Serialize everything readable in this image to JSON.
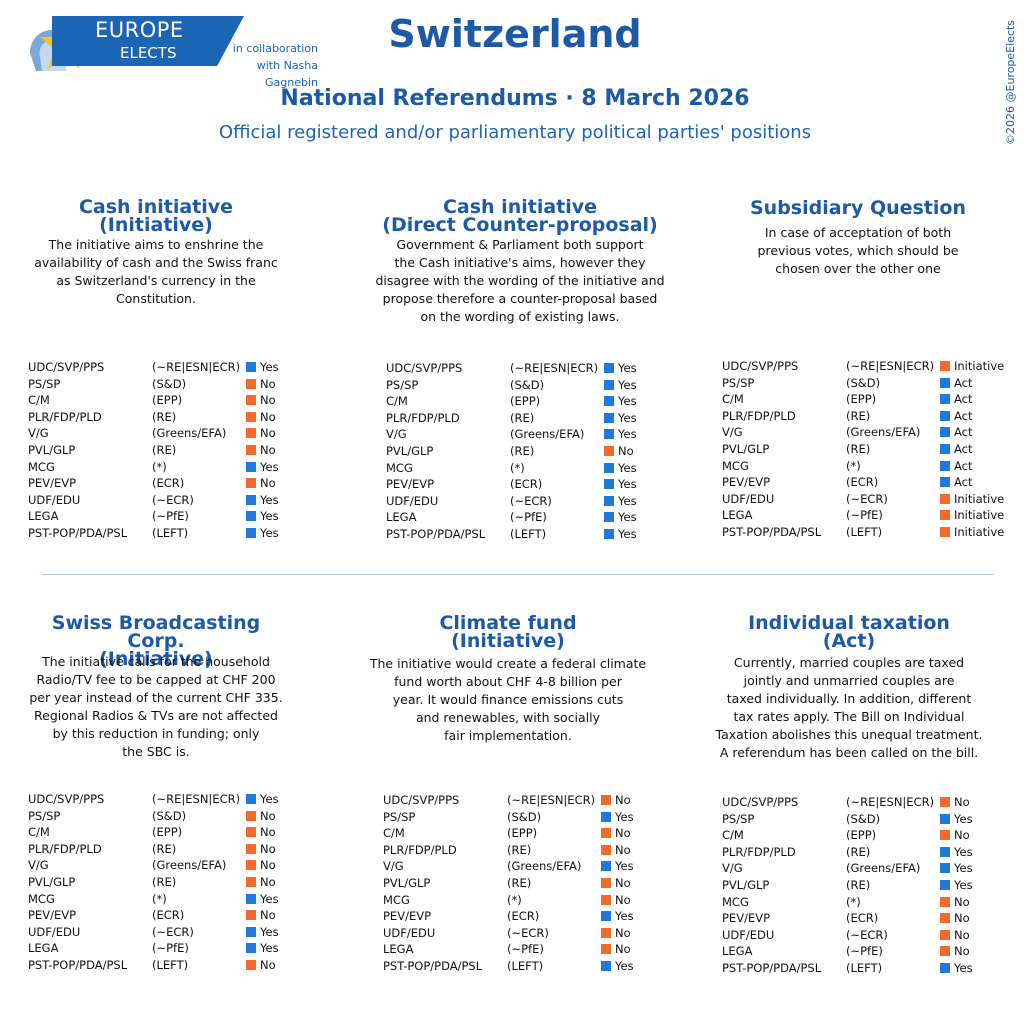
{
  "header": {
    "logo_line1": "EUROPE",
    "logo_line2": "ELECTS",
    "collab_line1": "in collaboration",
    "collab_line2": "with Nasha Gagnebin",
    "title": "Switzerland",
    "subtitle": "National Referendums · 8 March 2026",
    "subtitle2": "Official registered and/or parliamentary political parties' positions",
    "copyright": "©2026 @EuropeElects"
  },
  "colors": {
    "yes": "#1f79d8",
    "no": "#f46a2b",
    "title": "#1c5aa6"
  },
  "sections": [
    {
      "title1": "Cash initiative",
      "title2": "(Initiative)",
      "desc": [
        "The initiative aims to enshrine the",
        "availability of cash and the Swiss franc",
        "as Switzerland's currency in the",
        "Constitution."
      ],
      "rows": [
        {
          "party": "UDC/SVP/PPS",
          "group": "(~RE|ESN|ECR)",
          "pos": "Yes",
          "color": "blue"
        },
        {
          "party": "PS/SP",
          "group": "(S&D)",
          "pos": "No",
          "color": "orange"
        },
        {
          "party": "C/M",
          "group": "(EPP)",
          "pos": "No",
          "color": "orange"
        },
        {
          "party": "PLR/FDP/PLD",
          "group": "(RE)",
          "pos": "No",
          "color": "orange"
        },
        {
          "party": "V/G",
          "group": "(Greens/EFA)",
          "pos": "No",
          "color": "orange"
        },
        {
          "party": "PVL/GLP",
          "group": "(RE)",
          "pos": "No",
          "color": "orange"
        },
        {
          "party": "MCG",
          "group": "(*)",
          "pos": "Yes",
          "color": "blue"
        },
        {
          "party": "PEV/EVP",
          "group": "(ECR)",
          "pos": "No",
          "color": "orange"
        },
        {
          "party": "UDF/EDU",
          "group": "(~ECR)",
          "pos": "Yes",
          "color": "blue"
        },
        {
          "party": "LEGA",
          "group": "(~PfE)",
          "pos": "Yes",
          "color": "blue"
        },
        {
          "party": "PST-POP/PDA/PSL",
          "group": "(LEFT)",
          "pos": "Yes",
          "color": "blue"
        }
      ]
    },
    {
      "title1": "Cash initiative",
      "title2": "(Direct Counter-proposal)",
      "desc": [
        "Government & Parliament both support",
        "the Cash initiative's aims, however they",
        "disagree with the wording of the initiative and",
        "propose therefore a counter-proposal based",
        "on the wording of existing laws."
      ],
      "rows": [
        {
          "party": "UDC/SVP/PPS",
          "group": "(~RE|ESN|ECR)",
          "pos": "Yes",
          "color": "blue"
        },
        {
          "party": "PS/SP",
          "group": "(S&D)",
          "pos": "Yes",
          "color": "blue"
        },
        {
          "party": "C/M",
          "group": "(EPP)",
          "pos": "Yes",
          "color": "blue"
        },
        {
          "party": "PLR/FDP/PLD",
          "group": "(RE)",
          "pos": "Yes",
          "color": "blue"
        },
        {
          "party": "V/G",
          "group": "(Greens/EFA)",
          "pos": "Yes",
          "color": "blue"
        },
        {
          "party": "PVL/GLP",
          "group": "(RE)",
          "pos": "No",
          "color": "orange"
        },
        {
          "party": "MCG",
          "group": "(*)",
          "pos": "Yes",
          "color": "blue"
        },
        {
          "party": "PEV/EVP",
          "group": "(ECR)",
          "pos": "Yes",
          "color": "blue"
        },
        {
          "party": "UDF/EDU",
          "group": "(~ECR)",
          "pos": "Yes",
          "color": "blue"
        },
        {
          "party": "LEGA",
          "group": "(~PfE)",
          "pos": "Yes",
          "color": "blue"
        },
        {
          "party": "PST-POP/PDA/PSL",
          "group": "(LEFT)",
          "pos": "Yes",
          "color": "blue"
        }
      ]
    },
    {
      "title1": "Subsidiary Question",
      "title2": "",
      "desc": [
        "In case of acceptation of both",
        "previous votes, which should be",
        "chosen over the other one"
      ],
      "rows": [
        {
          "party": "UDC/SVP/PPS",
          "group": "(~RE|ESN|ECR)",
          "pos": "Initiative",
          "color": "orange"
        },
        {
          "party": "PS/SP",
          "group": "(S&D)",
          "pos": "Act",
          "color": "blue"
        },
        {
          "party": "C/M",
          "group": "(EPP)",
          "pos": "Act",
          "color": "blue"
        },
        {
          "party": "PLR/FDP/PLD",
          "group": "(RE)",
          "pos": "Act",
          "color": "blue"
        },
        {
          "party": "V/G",
          "group": "(Greens/EFA)",
          "pos": "Act",
          "color": "blue"
        },
        {
          "party": "PVL/GLP",
          "group": "(RE)",
          "pos": "Act",
          "color": "blue"
        },
        {
          "party": "MCG",
          "group": "(*)",
          "pos": "Act",
          "color": "blue"
        },
        {
          "party": "PEV/EVP",
          "group": "(ECR)",
          "pos": "Act",
          "color": "blue"
        },
        {
          "party": "UDF/EDU",
          "group": "(~ECR)",
          "pos": "Initiative",
          "color": "orange"
        },
        {
          "party": "LEGA",
          "group": "(~PfE)",
          "pos": "Initiative",
          "color": "orange"
        },
        {
          "party": "PST-POP/PDA/PSL",
          "group": "(LEFT)",
          "pos": "Initiative",
          "color": "orange"
        }
      ]
    },
    {
      "title1": "Swiss Broadcasting Corp.",
      "title2": "(Initiative)",
      "desc": [
        "The initiative calls for the household",
        "Radio/TV fee to be capped at CHF 200",
        "per year instead of the current CHF 335.",
        "Regional Radios & TVs are not affected",
        "by this reduction in funding; only",
        "the SBC is."
      ],
      "rows": [
        {
          "party": "UDC/SVP/PPS",
          "group": "(~RE|ESN|ECR)",
          "pos": "Yes",
          "color": "blue"
        },
        {
          "party": "PS/SP",
          "group": "(S&D)",
          "pos": "No",
          "color": "orange"
        },
        {
          "party": "C/M",
          "group": "(EPP)",
          "pos": "No",
          "color": "orange"
        },
        {
          "party": "PLR/FDP/PLD",
          "group": "(RE)",
          "pos": "No",
          "color": "orange"
        },
        {
          "party": "V/G",
          "group": "(Greens/EFA)",
          "pos": "No",
          "color": "orange"
        },
        {
          "party": "PVL/GLP",
          "group": "(RE)",
          "pos": "No",
          "color": "orange"
        },
        {
          "party": "MCG",
          "group": "(*)",
          "pos": "Yes",
          "color": "blue"
        },
        {
          "party": "PEV/EVP",
          "group": "(ECR)",
          "pos": "No",
          "color": "orange"
        },
        {
          "party": "UDF/EDU",
          "group": "(~ECR)",
          "pos": "Yes",
          "color": "blue"
        },
        {
          "party": "LEGA",
          "group": "(~PfE)",
          "pos": "Yes",
          "color": "blue"
        },
        {
          "party": "PST-POP/PDA/PSL",
          "group": "(LEFT)",
          "pos": "No",
          "color": "orange"
        }
      ]
    },
    {
      "title1": "Climate fund",
      "title2": "(Initiative)",
      "desc": [
        "The initiative would create a federal climate",
        "fund worth about CHF 4-8 billion per",
        "year. It would finance emissions cuts",
        "and renewables, with socially",
        "fair implementation."
      ],
      "rows": [
        {
          "party": "UDC/SVP/PPS",
          "group": "(~RE|ESN|ECR)",
          "pos": "No",
          "color": "orange"
        },
        {
          "party": "PS/SP",
          "group": "(S&D)",
          "pos": "Yes",
          "color": "blue"
        },
        {
          "party": "C/M",
          "group": "(EPP)",
          "pos": "No",
          "color": "orange"
        },
        {
          "party": "PLR/FDP/PLD",
          "group": "(RE)",
          "pos": "No",
          "color": "orange"
        },
        {
          "party": "V/G",
          "group": "(Greens/EFA)",
          "pos": "Yes",
          "color": "blue"
        },
        {
          "party": "PVL/GLP",
          "group": "(RE)",
          "pos": "No",
          "color": "orange"
        },
        {
          "party": "MCG",
          "group": "(*)",
          "pos": "No",
          "color": "orange"
        },
        {
          "party": "PEV/EVP",
          "group": "(ECR)",
          "pos": "Yes",
          "color": "blue"
        },
        {
          "party": "UDF/EDU",
          "group": "(~ECR)",
          "pos": "No",
          "color": "orange"
        },
        {
          "party": "LEGA",
          "group": "(~PfE)",
          "pos": "No",
          "color": "orange"
        },
        {
          "party": "PST-POP/PDA/PSL",
          "group": "(LEFT)",
          "pos": "Yes",
          "color": "blue"
        }
      ]
    },
    {
      "title1": "Individual taxation",
      "title2": "(Act)",
      "desc": [
        "Currently, married couples are taxed",
        "jointly and unmarried couples are",
        "taxed individually. In addition, different",
        "tax rates apply. The Bill on Individual",
        "Taxation abolishes this unequal treatment.",
        "A referendum has been called on the bill."
      ],
      "rows": [
        {
          "party": "UDC/SVP/PPS",
          "group": "(~RE|ESN|ECR)",
          "pos": "No",
          "color": "orange"
        },
        {
          "party": "PS/SP",
          "group": "(S&D)",
          "pos": "Yes",
          "color": "blue"
        },
        {
          "party": "C/M",
          "group": "(EPP)",
          "pos": "No",
          "color": "orange"
        },
        {
          "party": "PLR/FDP/PLD",
          "group": "(RE)",
          "pos": "Yes",
          "color": "blue"
        },
        {
          "party": "V/G",
          "group": "(Greens/EFA)",
          "pos": "Yes",
          "color": "blue"
        },
        {
          "party": "PVL/GLP",
          "group": "(RE)",
          "pos": "Yes",
          "color": "blue"
        },
        {
          "party": "MCG",
          "group": "(*)",
          "pos": "No",
          "color": "orange"
        },
        {
          "party": "PEV/EVP",
          "group": "(ECR)",
          "pos": "No",
          "color": "orange"
        },
        {
          "party": "UDF/EDU",
          "group": "(~ECR)",
          "pos": "No",
          "color": "orange"
        },
        {
          "party": "LEGA",
          "group": "(~PfE)",
          "pos": "No",
          "color": "orange"
        },
        {
          "party": "PST-POP/PDA/PSL",
          "group": "(LEFT)",
          "pos": "Yes",
          "color": "blue"
        }
      ]
    }
  ]
}
